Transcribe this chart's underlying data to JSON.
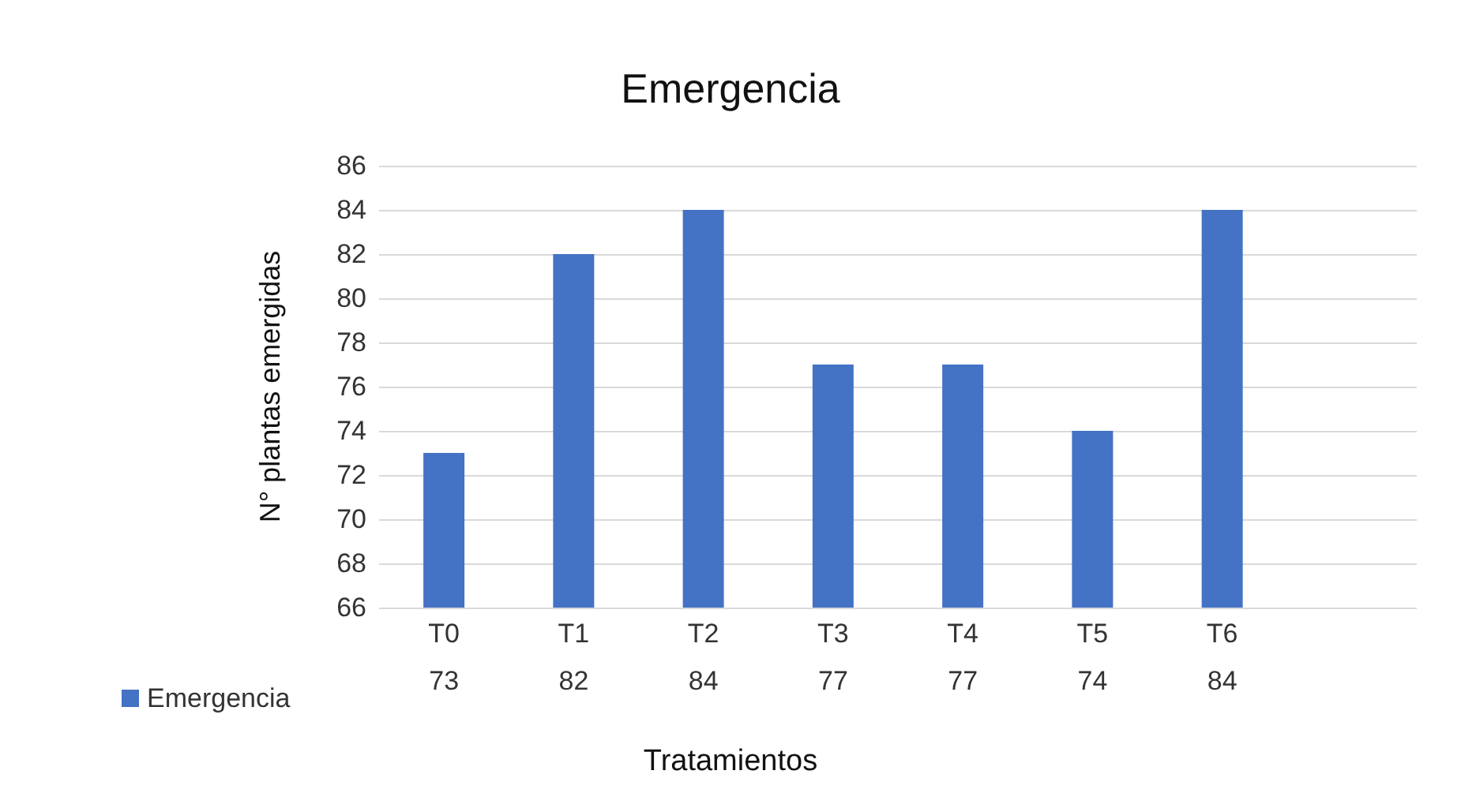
{
  "chart_data": {
    "type": "bar",
    "title": "Emergencia",
    "xlabel": "Tratamientos",
    "ylabel": "N° plantas emergidas",
    "categories": [
      "T0",
      "T1",
      "T2",
      "T3",
      "T4",
      "T5",
      "T6",
      null
    ],
    "series": [
      {
        "name": "Emergencia",
        "color": "#4472c4",
        "values": [
          73,
          82,
          84,
          77,
          77,
          74,
          84,
          null
        ]
      }
    ],
    "ylim": [
      66,
      86
    ],
    "yticks": [
      66,
      68,
      70,
      72,
      74,
      76,
      78,
      80,
      82,
      84,
      86
    ],
    "grid": "y",
    "legend": "bottom left",
    "data_labels": true
  }
}
